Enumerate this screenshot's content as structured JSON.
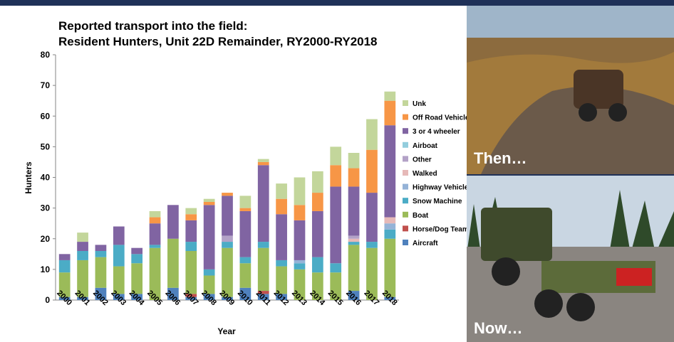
{
  "chart_data": {
    "type": "stacked_bar",
    "title": "Reported transport into the field:",
    "subtitle": "Resident Hunters, Unit 22D Remainder, RY2000-RY2018",
    "y_label": "Hunters",
    "x_label": "Year",
    "categories": [
      "2000",
      "2001",
      "2002",
      "2003",
      "2004",
      "2005",
      "2006",
      "2007",
      "2008",
      "2009",
      "2010",
      "2011",
      "2012",
      "2013",
      "2014",
      "2015",
      "2016",
      "2017",
      "2018"
    ],
    "ylim": [
      0,
      80
    ],
    "yticks": [
      0,
      10,
      20,
      30,
      40,
      50,
      60,
      70,
      80
    ],
    "grid": false,
    "legend": "right",
    "series": [
      {
        "name": "Aircraft",
        "color": "#4f81bd",
        "values": [
          1,
          1,
          4,
          2,
          2,
          0,
          4,
          1,
          2,
          1,
          4,
          2,
          2,
          0,
          0,
          0,
          3,
          0,
          1
        ]
      },
      {
        "name": "Horse/Dog Team",
        "color": "#c0504d",
        "values": [
          0,
          0,
          0,
          0,
          0,
          0,
          0,
          1,
          0,
          0,
          0,
          1,
          0,
          0,
          0,
          0,
          0,
          0,
          0
        ]
      },
      {
        "name": "Boat",
        "color": "#9bbb59",
        "values": [
          8,
          12,
          10,
          9,
          10,
          17,
          16,
          14,
          6,
          16,
          8,
          14,
          9,
          10,
          9,
          9,
          15,
          17,
          19
        ]
      },
      {
        "name": "Snow Machine",
        "color": "#4bacc6",
        "values": [
          4,
          3,
          2,
          7,
          3,
          1,
          0,
          3,
          2,
          2,
          2,
          2,
          2,
          2,
          5,
          3,
          1,
          2,
          3
        ]
      },
      {
        "name": "Highway Vehicle",
        "color": "#95b3d7",
        "values": [
          0,
          0,
          0,
          0,
          0,
          0,
          0,
          0,
          0,
          0,
          0,
          0,
          0,
          1,
          0,
          0,
          0,
          0,
          2
        ]
      },
      {
        "name": "Walked",
        "color": "#e6b9b8",
        "values": [
          0,
          0,
          0,
          0,
          0,
          0,
          0,
          0,
          0,
          0,
          0,
          0,
          0,
          0,
          0,
          0,
          1,
          0,
          2
        ]
      },
      {
        "name": "Other",
        "color": "#b3a2c7",
        "values": [
          0,
          0,
          0,
          0,
          0,
          0,
          0,
          0,
          0,
          2,
          0,
          0,
          0,
          0,
          0,
          0,
          1,
          0,
          0
        ]
      },
      {
        "name": "Airboat",
        "color": "#93cddd",
        "values": [
          0,
          0,
          0,
          0,
          0,
          0,
          0,
          0,
          0,
          0,
          0,
          0,
          0,
          0,
          0,
          0,
          0,
          0,
          0
        ]
      },
      {
        "name": "3 or 4 wheeler",
        "color": "#8064a2",
        "values": [
          2,
          3,
          2,
          6,
          2,
          7,
          11,
          7,
          21,
          13,
          15,
          25,
          15,
          13,
          15,
          25,
          16,
          16,
          30
        ]
      },
      {
        "name": "Off Road Vehicle",
        "color": "#f79646",
        "values": [
          0,
          0,
          0,
          0,
          0,
          2,
          0,
          2,
          1,
          1,
          1,
          1,
          5,
          5,
          6,
          7,
          6,
          14,
          8
        ]
      },
      {
        "name": "Unk",
        "color": "#c3d69b",
        "values": [
          0,
          3,
          0,
          0,
          0,
          2,
          0,
          2,
          1,
          0,
          4,
          1,
          5,
          9,
          7,
          6,
          5,
          10,
          3
        ]
      }
    ]
  },
  "photos": [
    {
      "caption": "Then…"
    },
    {
      "caption": "Now…"
    }
  ]
}
